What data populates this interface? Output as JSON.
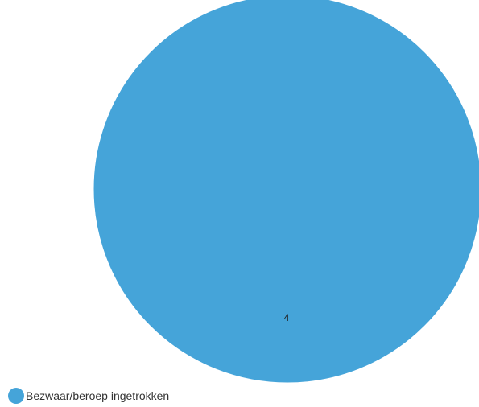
{
  "chart_data": {
    "type": "pie",
    "title": "",
    "categories": [
      "Bezwaar/beroep ingetrokken"
    ],
    "values": [
      4
    ],
    "data_labels": [
      "4"
    ],
    "colors": [
      "#45a4d9"
    ],
    "legend_position": "bottom-left"
  },
  "legend": {
    "items": [
      {
        "label": "Bezwaar/beroep ingetrokken",
        "color": "#45a4d9"
      }
    ]
  }
}
